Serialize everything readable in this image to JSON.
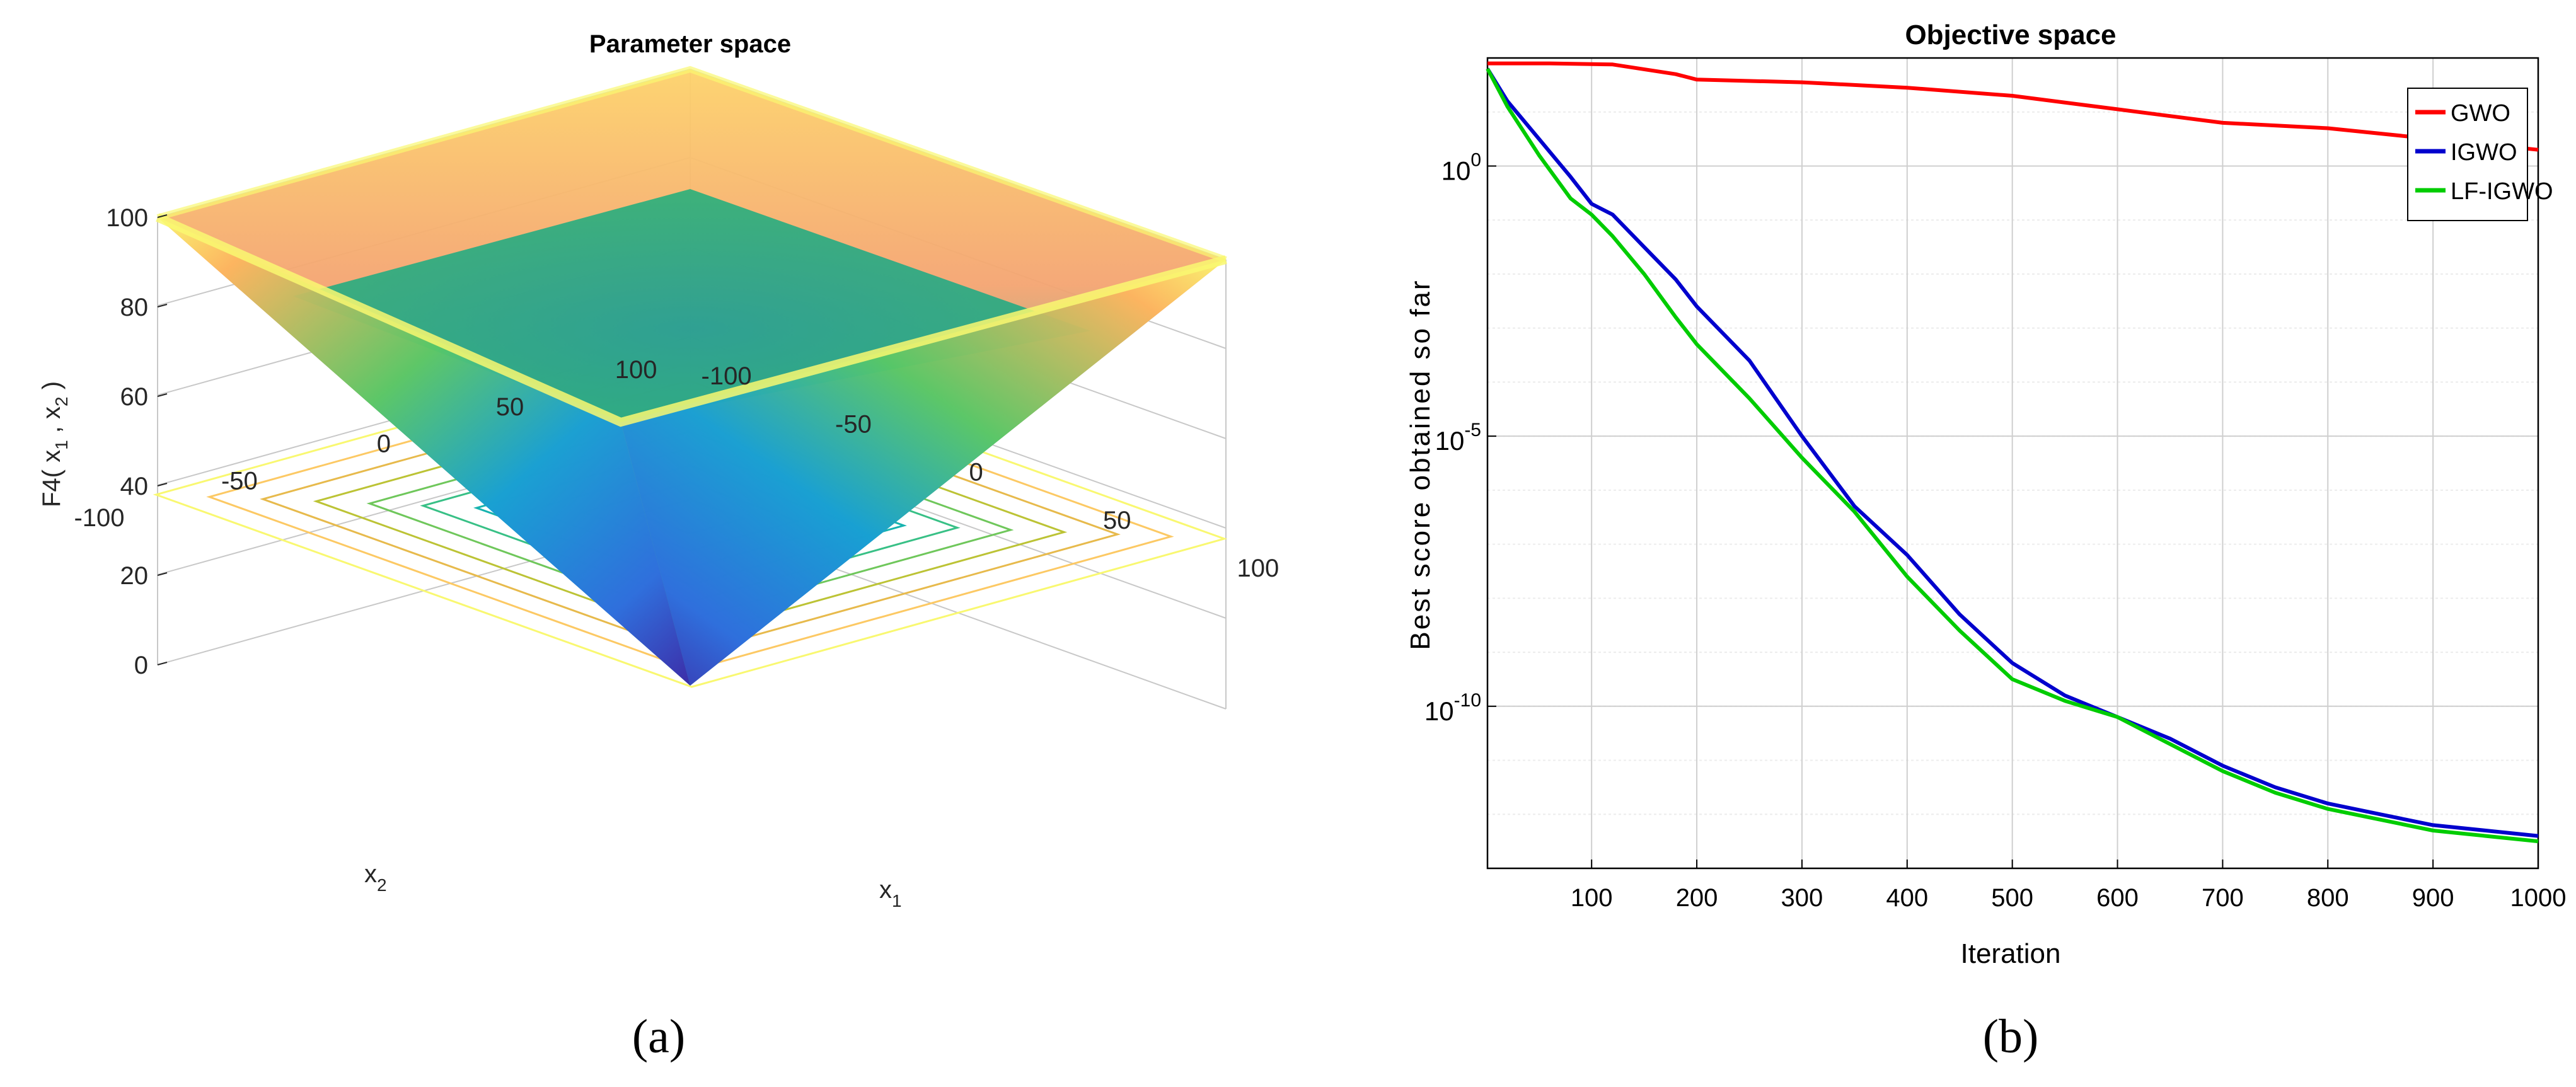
{
  "panel_labels": {
    "a": "(a)",
    "b": "(b)"
  },
  "chart_data": [
    {
      "type": "surface3d",
      "title": "Parameter space",
      "function": "F4 = max(|x1|, |x2|)",
      "zlabel": "F4( x1 , x2 )",
      "zlabel_parts": {
        "main": "F4( x",
        "sub1": "1",
        "mid": " , x",
        "sub2": "2",
        "end": " )"
      },
      "xlabel": {
        "main": "x",
        "sub": "1"
      },
      "ylabel": {
        "main": "x",
        "sub": "2"
      },
      "xlim": [
        -100,
        100
      ],
      "ylim": [
        -100,
        100
      ],
      "zlim": [
        0,
        100
      ],
      "z_ticks": [
        "0",
        "20",
        "40",
        "60",
        "80",
        "100"
      ],
      "x1_ticks": [
        "-100",
        "-50",
        "0",
        "50",
        "100"
      ],
      "x2_ticks": [
        "-100",
        "-50",
        "0",
        "50",
        "100"
      ],
      "contour_levels": [
        10,
        20,
        30,
        40,
        50,
        60,
        70,
        80,
        90,
        100
      ],
      "colormap": [
        "#3e26a8",
        "#2f6ce0",
        "#169fd6",
        "#17b8a5",
        "#59c866",
        "#c7c230",
        "#fdb55f",
        "#f9f871"
      ],
      "grid": true
    },
    {
      "type": "line",
      "title": "Objective space",
      "xlabel": "Iteration",
      "ylabel": "Best score obtained so far",
      "yscale": "log",
      "xlim": [
        1,
        1000
      ],
      "ylim_log10": [
        -13,
        2
      ],
      "x_ticks": [
        "100",
        "200",
        "300",
        "400",
        "500",
        "600",
        "700",
        "800",
        "900",
        "1000"
      ],
      "y_ticks": [
        {
          "base": "10",
          "exp": "0",
          "value": 0
        },
        {
          "base": "10",
          "exp": "-5",
          "value": -5
        },
        {
          "base": "10",
          "exp": "-10",
          "value": -10
        }
      ],
      "legend_position": "top-right",
      "grid": true,
      "series": [
        {
          "name": "GWO",
          "color": "#ff0000",
          "x": [
            1,
            60,
            120,
            180,
            200,
            300,
            400,
            500,
            560,
            600,
            700,
            800,
            900,
            1000
          ],
          "log10_y": [
            1.9,
            1.9,
            1.88,
            1.7,
            1.6,
            1.55,
            1.45,
            1.3,
            1.15,
            1.05,
            0.8,
            0.7,
            0.5,
            0.3
          ]
        },
        {
          "name": "IGWO",
          "color": "#0000cd",
          "x": [
            1,
            20,
            50,
            80,
            100,
            120,
            150,
            180,
            200,
            250,
            300,
            350,
            400,
            450,
            500,
            550,
            600,
            650,
            700,
            750,
            800,
            850,
            900,
            950,
            1000
          ],
          "log10_y": [
            1.8,
            1.2,
            0.5,
            -0.2,
            -0.7,
            -0.9,
            -1.5,
            -2.1,
            -2.6,
            -3.6,
            -5.0,
            -6.3,
            -7.2,
            -8.3,
            -9.2,
            -9.8,
            -10.2,
            -10.6,
            -11.1,
            -11.5,
            -11.8,
            -12.0,
            -12.2,
            -12.3,
            -12.4
          ]
        },
        {
          "name": "LF-IGWO",
          "color": "#00cc00",
          "x": [
            1,
            20,
            50,
            80,
            100,
            120,
            150,
            180,
            200,
            250,
            300,
            350,
            400,
            450,
            500,
            550,
            600,
            650,
            700,
            750,
            800,
            850,
            900,
            950,
            1000
          ],
          "log10_y": [
            1.8,
            1.1,
            0.2,
            -0.6,
            -0.9,
            -1.3,
            -2.0,
            -2.8,
            -3.3,
            -4.3,
            -5.4,
            -6.4,
            -7.6,
            -8.6,
            -9.5,
            -9.9,
            -10.2,
            -10.7,
            -11.2,
            -11.6,
            -11.9,
            -12.1,
            -12.3,
            -12.4,
            -12.5
          ]
        }
      ]
    }
  ]
}
